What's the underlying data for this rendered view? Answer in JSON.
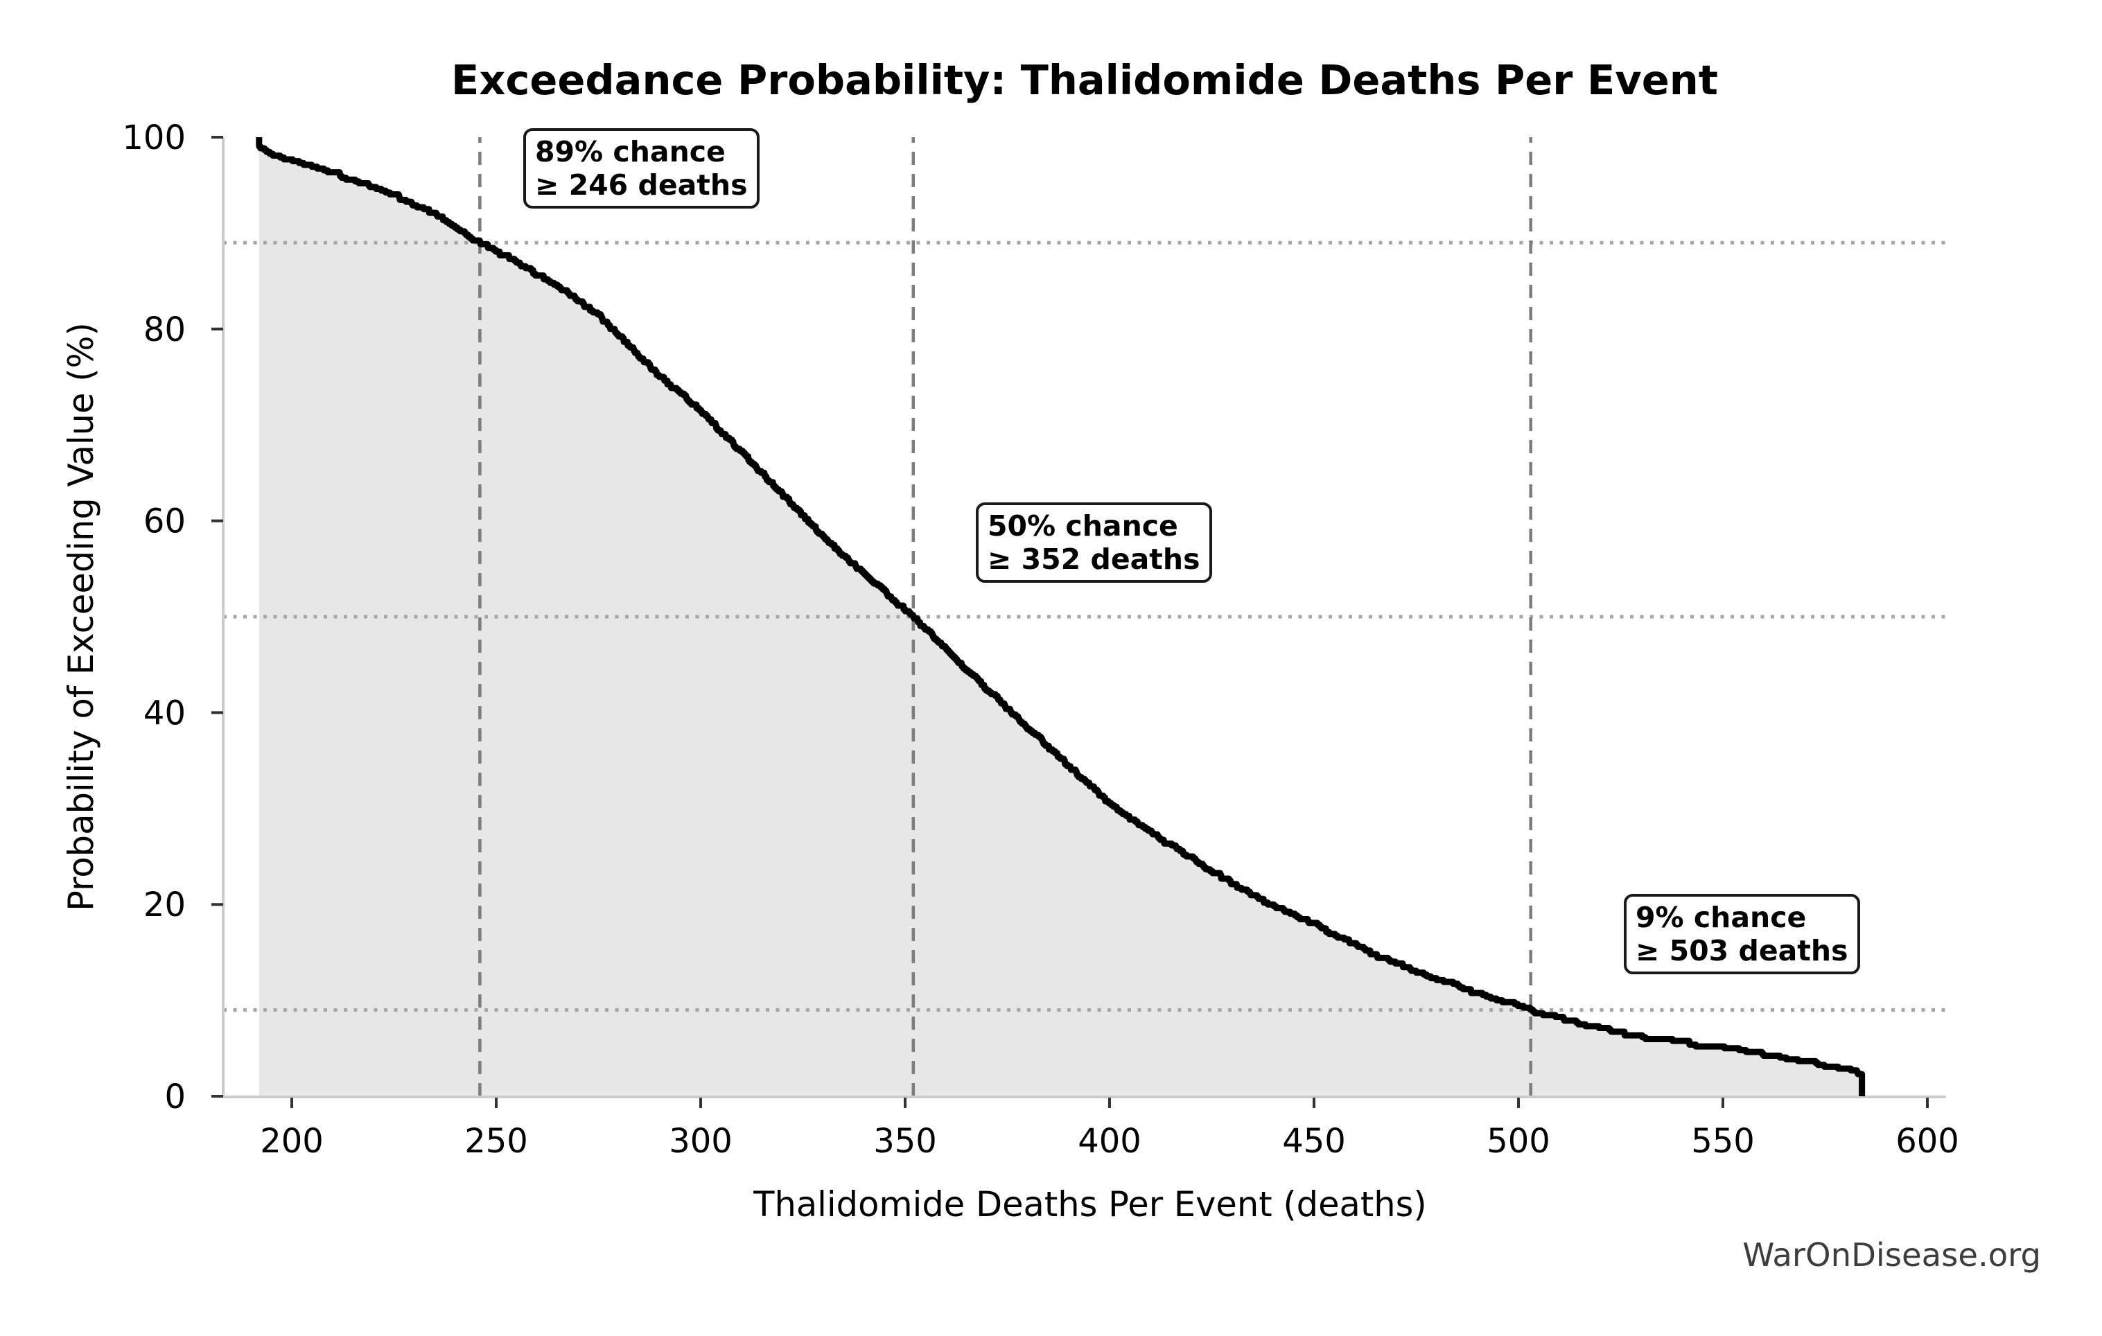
{
  "title": "Exceedance Probability: Thalidomide Deaths Per Event",
  "watermark": "WarOnDisease.org",
  "chart_data": {
    "type": "line",
    "subtype": "exceedance-probability-step-curve",
    "title": "Exceedance Probability: Thalidomide Deaths Per Event",
    "xlabel": "Thalidomide Deaths Per Event (deaths)",
    "ylabel": "Probability of Exceeding Value (%)",
    "x_ticks": [
      200,
      250,
      300,
      350,
      400,
      450,
      500,
      550,
      600
    ],
    "y_ticks": [
      0,
      20,
      40,
      60,
      80,
      100
    ],
    "xlim": [
      183,
      602
    ],
    "ylim": [
      0,
      100
    ],
    "x_data_range": [
      192,
      584
    ],
    "survival_points": [
      [
        192,
        99.2
      ],
      [
        196,
        98.2
      ],
      [
        205,
        97.0
      ],
      [
        215,
        95.6
      ],
      [
        225,
        94.0
      ],
      [
        235,
        92.0
      ],
      [
        246,
        89.0
      ],
      [
        255,
        87.0
      ],
      [
        265,
        84.5
      ],
      [
        275,
        81.5
      ],
      [
        289,
        75.5
      ],
      [
        300,
        71.5
      ],
      [
        315,
        65.0
      ],
      [
        331,
        58.0
      ],
      [
        340,
        54.5
      ],
      [
        352,
        50.0
      ],
      [
        365,
        44.5
      ],
      [
        375,
        40.5
      ],
      [
        385,
        36.5
      ],
      [
        400,
        30.5
      ],
      [
        412,
        27.0
      ],
      [
        425,
        23.5
      ],
      [
        437,
        20.5
      ],
      [
        450,
        18.0
      ],
      [
        465,
        14.8
      ],
      [
        480,
        12.2
      ],
      [
        503,
        9.0
      ],
      [
        520,
        7.0
      ],
      [
        535,
        5.9
      ],
      [
        550,
        5.0
      ],
      [
        565,
        4.0
      ],
      [
        578,
        3.0
      ],
      [
        584,
        2.4
      ]
    ],
    "markers": [
      {
        "prob": 89,
        "value": 246,
        "line1": "89% chance",
        "line2": "≥ 246 deaths"
      },
      {
        "prob": 50,
        "value": 352,
        "line1": "50% chance",
        "line2": "≥ 352 deaths"
      },
      {
        "prob": 9,
        "value": 503,
        "line1": "9% chance",
        "line2": "≥ 503 deaths"
      }
    ],
    "n_samples": 520,
    "seed": 42,
    "colors": {
      "curve": "#000000",
      "fill": "#e7e7e7",
      "dashed_line": "#7d7d7d",
      "dotted_line": "#a6a6a6",
      "spine": "#cccccc",
      "tick": "#333333",
      "text": "#000000",
      "watermark": "#3d3d3d"
    }
  }
}
